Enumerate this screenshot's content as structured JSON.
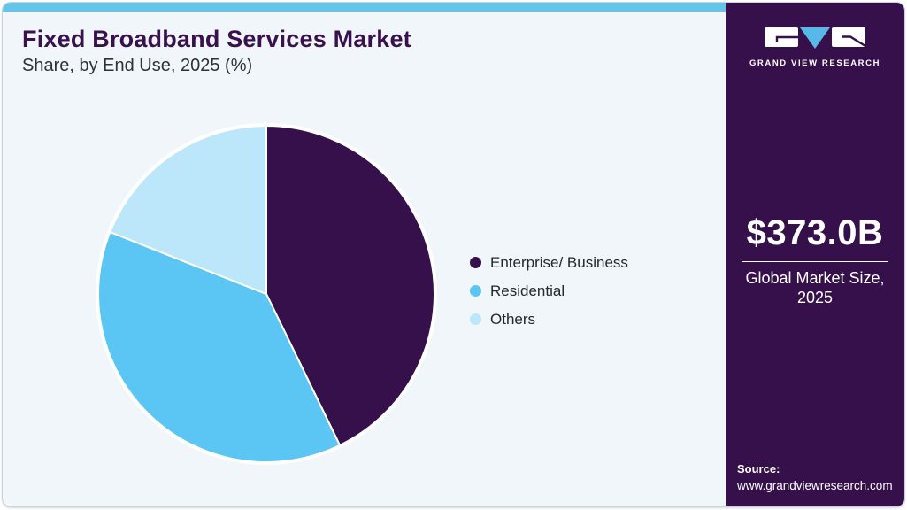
{
  "header": {
    "title": "Fixed Broadband Services Market",
    "subtitle": "Share, by End Use, 2025 (%)"
  },
  "chart_data": {
    "type": "pie",
    "title": "Fixed Broadband Services Market Share, by End Use, 2025 (%)",
    "unit": "%",
    "start_angle_deg": 0,
    "direction": "clockwise",
    "legend_position": "right",
    "data_labels_shown": false,
    "slices": [
      {
        "label": "Enterprise/ Business",
        "value": 42.8,
        "color": "#36104a"
      },
      {
        "label": "Residential",
        "value": 38.2,
        "color": "#5bc6f3"
      },
      {
        "label": "Others",
        "value": 19.0,
        "color": "#bce7fa"
      }
    ]
  },
  "sidebar": {
    "brand": {
      "wordmark": "GRAND VIEW RESEARCH"
    },
    "market_size": {
      "value": "$373.0B",
      "caption_line1": "Global Market Size,",
      "caption_line2": "2025"
    },
    "source": {
      "label": "Source:",
      "url": "www.grandviewresearch.com"
    }
  },
  "colors": {
    "sidebar_purple": "#36104a",
    "title_purple": "#3a1150",
    "accent_blue": "#64c5eb",
    "background": "#f0f6fa",
    "logo_triangle_blue": "#56b9e8"
  }
}
